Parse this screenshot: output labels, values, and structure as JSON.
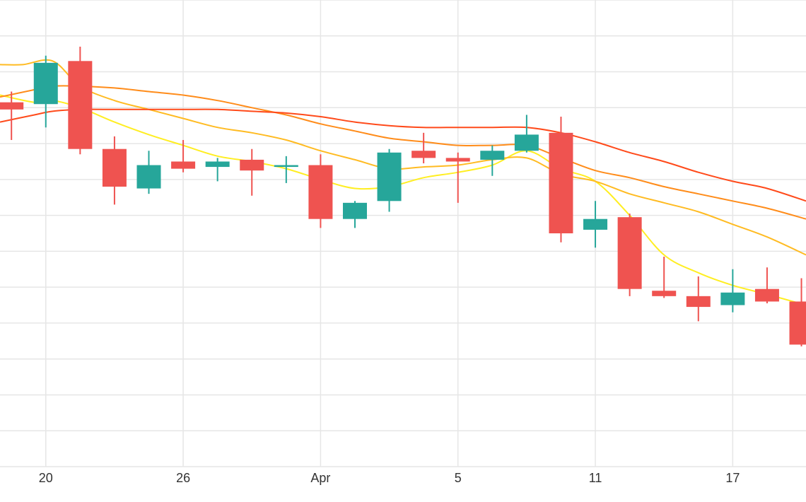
{
  "chart_data": {
    "type": "candlestick",
    "title": "",
    "xlabel": "",
    "ylabel": "",
    "x_ticks": [
      {
        "label": "20",
        "day": 20
      },
      {
        "label": "26",
        "day": 26
      },
      {
        "label": "Apr",
        "day": 32
      },
      {
        "label": "5",
        "day": 38
      },
      {
        "label": "11",
        "day": 44
      },
      {
        "label": "17",
        "day": 50
      }
    ],
    "xlim": [
      18,
      53.2
    ],
    "ylim": [
      0,
      13
    ],
    "grid": true,
    "candles": [
      {
        "day": 18.5,
        "open": 10.15,
        "high": 10.45,
        "low": 9.1,
        "close": 9.95
      },
      {
        "day": 20.0,
        "open": 10.1,
        "high": 11.45,
        "low": 9.45,
        "close": 11.25
      },
      {
        "day": 21.5,
        "open": 11.3,
        "high": 11.7,
        "low": 8.7,
        "close": 8.85
      },
      {
        "day": 23.0,
        "open": 8.85,
        "high": 9.2,
        "low": 7.3,
        "close": 7.8
      },
      {
        "day": 24.5,
        "open": 7.75,
        "high": 8.8,
        "low": 7.6,
        "close": 8.4
      },
      {
        "day": 26.0,
        "open": 8.5,
        "high": 9.1,
        "low": 8.2,
        "close": 8.3
      },
      {
        "day": 27.5,
        "open": 8.35,
        "high": 8.6,
        "low": 7.95,
        "close": 8.5
      },
      {
        "day": 29.0,
        "open": 8.55,
        "high": 8.85,
        "low": 7.55,
        "close": 8.25
      },
      {
        "day": 30.5,
        "open": 8.35,
        "high": 8.65,
        "low": 7.9,
        "close": 8.4
      },
      {
        "day": 32.0,
        "open": 8.4,
        "high": 8.7,
        "low": 6.65,
        "close": 6.9
      },
      {
        "day": 33.5,
        "open": 6.9,
        "high": 7.4,
        "low": 6.65,
        "close": 7.35
      },
      {
        "day": 35.0,
        "open": 7.4,
        "high": 8.85,
        "low": 7.1,
        "close": 8.75
      },
      {
        "day": 36.5,
        "open": 8.8,
        "high": 9.3,
        "low": 8.45,
        "close": 8.6
      },
      {
        "day": 38.0,
        "open": 8.6,
        "high": 8.75,
        "low": 7.35,
        "close": 8.5
      },
      {
        "day": 39.5,
        "open": 8.55,
        "high": 8.95,
        "low": 8.1,
        "close": 8.8
      },
      {
        "day": 41.0,
        "open": 8.8,
        "high": 9.8,
        "low": 8.75,
        "close": 9.25
      },
      {
        "day": 42.5,
        "open": 9.3,
        "high": 9.75,
        "low": 6.25,
        "close": 6.5
      },
      {
        "day": 44.0,
        "open": 6.6,
        "high": 7.4,
        "low": 6.1,
        "close": 6.9
      },
      {
        "day": 45.5,
        "open": 6.95,
        "high": 7.05,
        "low": 4.75,
        "close": 4.95
      },
      {
        "day": 47.0,
        "open": 4.9,
        "high": 5.85,
        "low": 4.7,
        "close": 4.75
      },
      {
        "day": 48.5,
        "open": 4.75,
        "high": 5.3,
        "low": 4.05,
        "close": 4.45
      },
      {
        "day": 50.0,
        "open": 4.5,
        "high": 5.5,
        "low": 4.3,
        "close": 4.85
      },
      {
        "day": 51.5,
        "open": 4.95,
        "high": 5.55,
        "low": 4.55,
        "close": 4.6
      },
      {
        "day": 53.0,
        "open": 4.6,
        "high": 5.25,
        "low": 3.35,
        "close": 3.4
      }
    ],
    "up_color": "#26a69a",
    "down_color": "#ef5350",
    "series": [
      {
        "color": "#ffee22",
        "x": [
          18,
          19.5,
          20.3,
          21.5,
          23,
          24.5,
          26,
          27.5,
          29,
          30.5,
          32,
          33.5,
          35,
          36.5,
          38,
          39.5,
          41,
          42.5,
          44,
          45.5,
          47,
          48.5,
          50,
          51.5,
          53.2
        ],
        "y": [
          10.35,
          10.15,
          10.2,
          10.0,
          9.6,
          9.25,
          8.95,
          8.65,
          8.5,
          8.3,
          8.0,
          7.75,
          7.8,
          8.05,
          8.2,
          8.4,
          8.8,
          8.3,
          7.95,
          7.0,
          5.9,
          5.4,
          5.05,
          4.8,
          4.5
        ]
      },
      {
        "color": "#ffbb22",
        "x": [
          18,
          19,
          20.3,
          21.5,
          23,
          24.5,
          26,
          27.5,
          29,
          30.5,
          32,
          33.5,
          35,
          36.5,
          38,
          39.5,
          41,
          42.5,
          44,
          45.5,
          47,
          48.5,
          50,
          51.5,
          53.2
        ],
        "y": [
          11.2,
          11.2,
          11.3,
          10.6,
          10.2,
          9.95,
          9.7,
          9.45,
          9.3,
          9.1,
          8.8,
          8.55,
          8.3,
          8.35,
          8.4,
          8.55,
          8.6,
          8.15,
          7.95,
          7.6,
          7.35,
          7.1,
          6.75,
          6.4,
          5.9
        ]
      },
      {
        "color": "#ff8c1a",
        "x": [
          18,
          19.5,
          20.3,
          21.5,
          23,
          24.5,
          26,
          27.5,
          29,
          30.5,
          32,
          33.5,
          35,
          36.5,
          38,
          39.5,
          41,
          42.5,
          44,
          45.5,
          47,
          48.5,
          50,
          51.5,
          53.2
        ],
        "y": [
          10.3,
          10.5,
          10.6,
          10.6,
          10.55,
          10.45,
          10.35,
          10.2,
          10.0,
          9.8,
          9.55,
          9.35,
          9.15,
          9.05,
          8.95,
          8.95,
          8.95,
          8.6,
          8.25,
          8.05,
          7.8,
          7.6,
          7.4,
          7.2,
          6.9
        ]
      },
      {
        "color": "#ff4a1a",
        "x": [
          18,
          19.5,
          20.3,
          21.5,
          23,
          24.5,
          26,
          27.5,
          29,
          30.5,
          32,
          33.5,
          35,
          36.5,
          38,
          39.5,
          41,
          42.5,
          44,
          45.5,
          47,
          48.5,
          50,
          51.5,
          53.2
        ],
        "y": [
          9.6,
          9.8,
          9.9,
          9.95,
          9.95,
          9.95,
          9.95,
          9.95,
          9.9,
          9.85,
          9.75,
          9.6,
          9.5,
          9.45,
          9.45,
          9.45,
          9.45,
          9.3,
          9.05,
          8.75,
          8.5,
          8.2,
          7.95,
          7.75,
          7.4
        ]
      }
    ]
  }
}
